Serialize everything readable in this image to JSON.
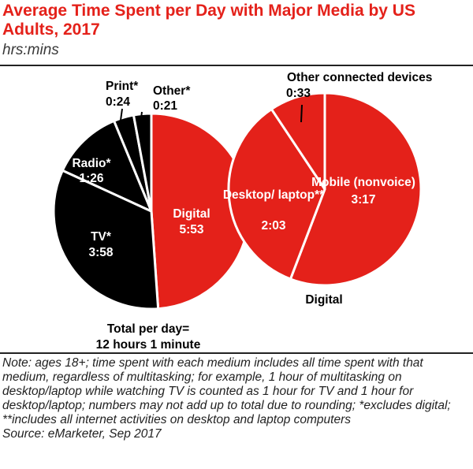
{
  "title": "Average Time Spent per Day with Major Media by US Adults, 2017",
  "subtitle": "hrs:mins",
  "total": {
    "line1": "Total per day=",
    "line2": "12 hours 1 minute"
  },
  "notes": "Note: ages 18+; time spent with each medium includes all time spent with that medium, regardless of multitasking; for example, 1 hour of multitasking on desktop/laptop while watching TV is counted as 1 hour for TV and 1 hour for desktop/laptop; numbers may not add up to total due to rounding; *excludes digital; **includes all internet activities on desktop and laptop computers",
  "source": "Source: eMarketer, Sep 2017",
  "colors": {
    "red": "#e4211a",
    "black": "#000000",
    "white": "#ffffff"
  },
  "chart_data": [
    {
      "type": "pie",
      "unit": "hrs:mins",
      "labels": [
        "Digital",
        "TV*",
        "Radio*",
        "Print*",
        "Other*"
      ],
      "values": [
        "5:53",
        "3:58",
        "1:26",
        "0:24",
        "0:21"
      ],
      "minutes": [
        353,
        238,
        86,
        24,
        21
      ],
      "colors": [
        "#e4211a",
        "#000000",
        "#000000",
        "#000000",
        "#000000"
      ]
    },
    {
      "type": "pie",
      "title": "Digital",
      "unit": "hrs:mins",
      "labels": [
        "Mobile (nonvoice)",
        "Desktop/ laptop**",
        "Other connected devices"
      ],
      "values": [
        "3:17",
        "2:03",
        "0:33"
      ],
      "minutes": [
        197,
        123,
        33
      ],
      "colors": [
        "#e4211a",
        "#e4211a",
        "#e4211a"
      ]
    }
  ]
}
